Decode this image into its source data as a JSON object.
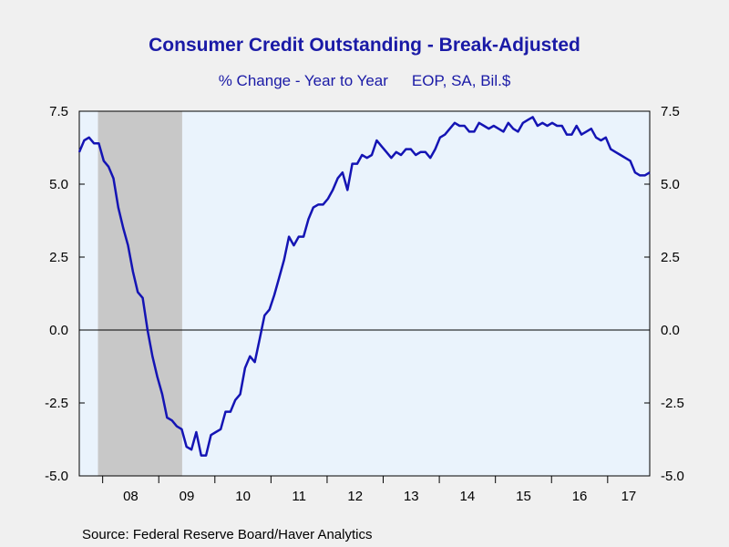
{
  "header": {
    "title": "Consumer Credit Outstanding - Break-Adjusted",
    "subtitle_left": "% Change - Year to Year",
    "subtitle_right": "EOP, SA, Bil.$"
  },
  "footer": {
    "source": "Source:  Federal Reserve Board/Haver Analytics"
  },
  "colors": {
    "line": "#1414b4",
    "plot_bg": "#eaf3fc",
    "recession": "#c8c8c8",
    "title": "#1a1aa6"
  },
  "chart_data": {
    "type": "line",
    "title": "Consumer Credit Outstanding - Break-Adjusted",
    "subtitle": "% Change - Year to Year    EOP, SA, Bil.$",
    "frequency": "monthly",
    "x_start": "2007-08",
    "x_end": "2017-10",
    "xtick_labels": [
      "08",
      "09",
      "10",
      "11",
      "12",
      "13",
      "14",
      "15",
      "16",
      "17"
    ],
    "ylim": [
      -5.0,
      7.5
    ],
    "yticks": [
      7.5,
      5.0,
      2.5,
      0.0,
      -2.5,
      -5.0
    ],
    "ytick_labels": [
      "7.5",
      "5.0",
      "2.5",
      "0.0",
      "-2.5",
      "-5.0"
    ],
    "dual_y_axis": true,
    "zero_line": true,
    "grid": false,
    "recession_shading": {
      "start": "2007-12",
      "end": "2009-06"
    },
    "series": [
      {
        "values": [
          6.1,
          6.5,
          6.6,
          6.4,
          6.4,
          5.8,
          5.6,
          5.2,
          4.2,
          3.5,
          2.9,
          2.0,
          1.3,
          1.1,
          0.0,
          -0.9,
          -1.6,
          -2.2,
          -3.0,
          -3.1,
          -3.3,
          -3.4,
          -4.0,
          -4.1,
          -3.5,
          -4.3,
          -4.3,
          -3.6,
          -3.5,
          -3.4,
          -2.8,
          -2.8,
          -2.4,
          -2.2,
          -1.3,
          -0.9,
          -1.1,
          -0.3,
          0.5,
          0.7,
          1.2,
          1.8,
          2.4,
          3.2,
          2.9,
          3.2,
          3.2,
          3.8,
          4.2,
          4.3,
          4.3,
          4.5,
          4.8,
          5.2,
          5.4,
          4.8,
          5.7,
          5.7,
          6.0,
          5.9,
          6.0,
          6.5,
          6.3,
          6.1,
          5.9,
          6.1,
          6.0,
          6.2,
          6.2,
          6.0,
          6.1,
          6.1,
          5.9,
          6.2,
          6.6,
          6.7,
          6.9,
          7.1,
          7.0,
          7.0,
          6.8,
          6.8,
          7.1,
          7.0,
          6.9,
          7.0,
          6.9,
          6.8,
          7.1,
          6.9,
          6.8,
          7.1,
          7.2,
          7.3,
          7.0,
          7.1,
          7.0,
          7.1,
          7.0,
          7.0,
          6.7,
          6.7,
          7.0,
          6.7,
          6.8,
          6.9,
          6.6,
          6.5,
          6.6,
          6.2,
          6.1,
          6.0,
          5.9,
          5.8,
          5.4,
          5.3,
          5.3,
          5.4
        ]
      }
    ]
  }
}
